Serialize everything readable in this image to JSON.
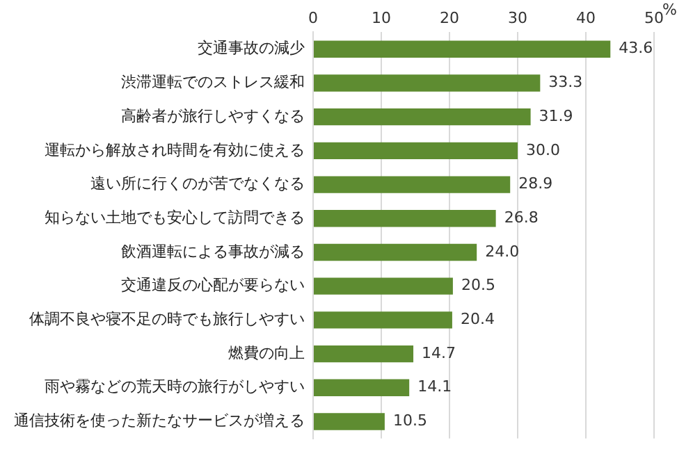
{
  "chart_data": {
    "type": "bar",
    "orientation": "horizontal",
    "xlabel": "%",
    "categories": [
      "交通事故の減少",
      "渋滞運転でのストレス緩和",
      "高齢者が旅行しやすくなる",
      "運転から解放され時間を有効に使える",
      "遠い所に行くのが苦でなくなる",
      "知らない土地でも安心して訪問できる",
      "飲酒運転による事故が減る",
      "交通違反の心配が要らない",
      "体調不良や寝不足の時でも旅行しやすい",
      "燃費の向上",
      "雨や霧などの荒天時の旅行がしやすい",
      "通信技術を使った新たなサービスが増える"
    ],
    "values": [
      43.6,
      33.3,
      31.9,
      30.0,
      28.9,
      26.8,
      24.0,
      20.5,
      20.4,
      14.7,
      14.1,
      10.5
    ],
    "value_labels": [
      "43.6",
      "33.3",
      "31.9",
      "30.0",
      "28.9",
      "26.8",
      "24.0",
      "20.5",
      "20.4",
      "14.7",
      "14.1",
      "10.5"
    ],
    "color": "#5e8c31",
    "xlim": [
      0,
      50
    ],
    "xticks": [
      0,
      10,
      20,
      30,
      40,
      50
    ],
    "grid": "x"
  }
}
